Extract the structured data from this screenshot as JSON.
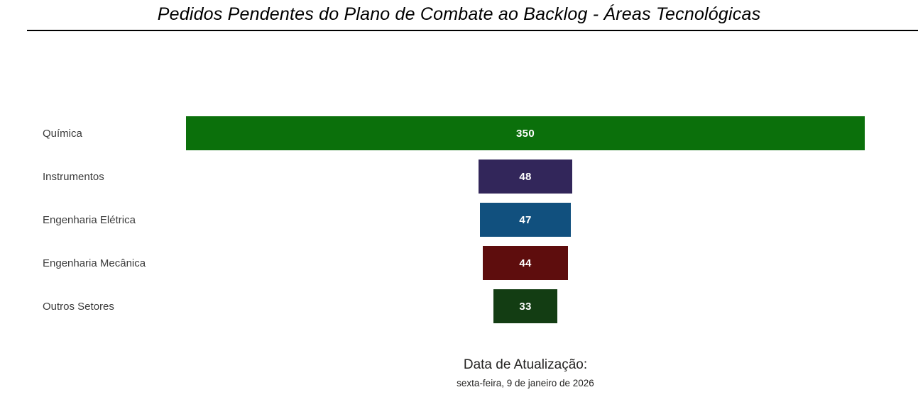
{
  "title": "Pedidos Pendentes do Plano de Combate ao Backlog - Áreas Tecnológicas",
  "chart_data": {
    "type": "bar",
    "subtype": "funnel",
    "orientation": "horizontal",
    "title": "Pedidos Pendentes do Plano de Combate ao Backlog - Áreas Tecnológicas",
    "categories": [
      "Química",
      "Instrumentos",
      "Engenharia Elétrica",
      "Engenharia Mecânica",
      "Outros Setores"
    ],
    "values": [
      350,
      48,
      47,
      44,
      33
    ],
    "colors": [
      "#0b700b",
      "#32265a",
      "#11507e",
      "#5e0d0d",
      "#133d13"
    ],
    "max_value": 350,
    "value_label_color": "#ffffff",
    "legend": "none",
    "grid": false,
    "bars_centered": true
  },
  "footer": {
    "label": "Data de Atualização:",
    "date": "sexta-feira, 9 de janeiro de 2026"
  }
}
